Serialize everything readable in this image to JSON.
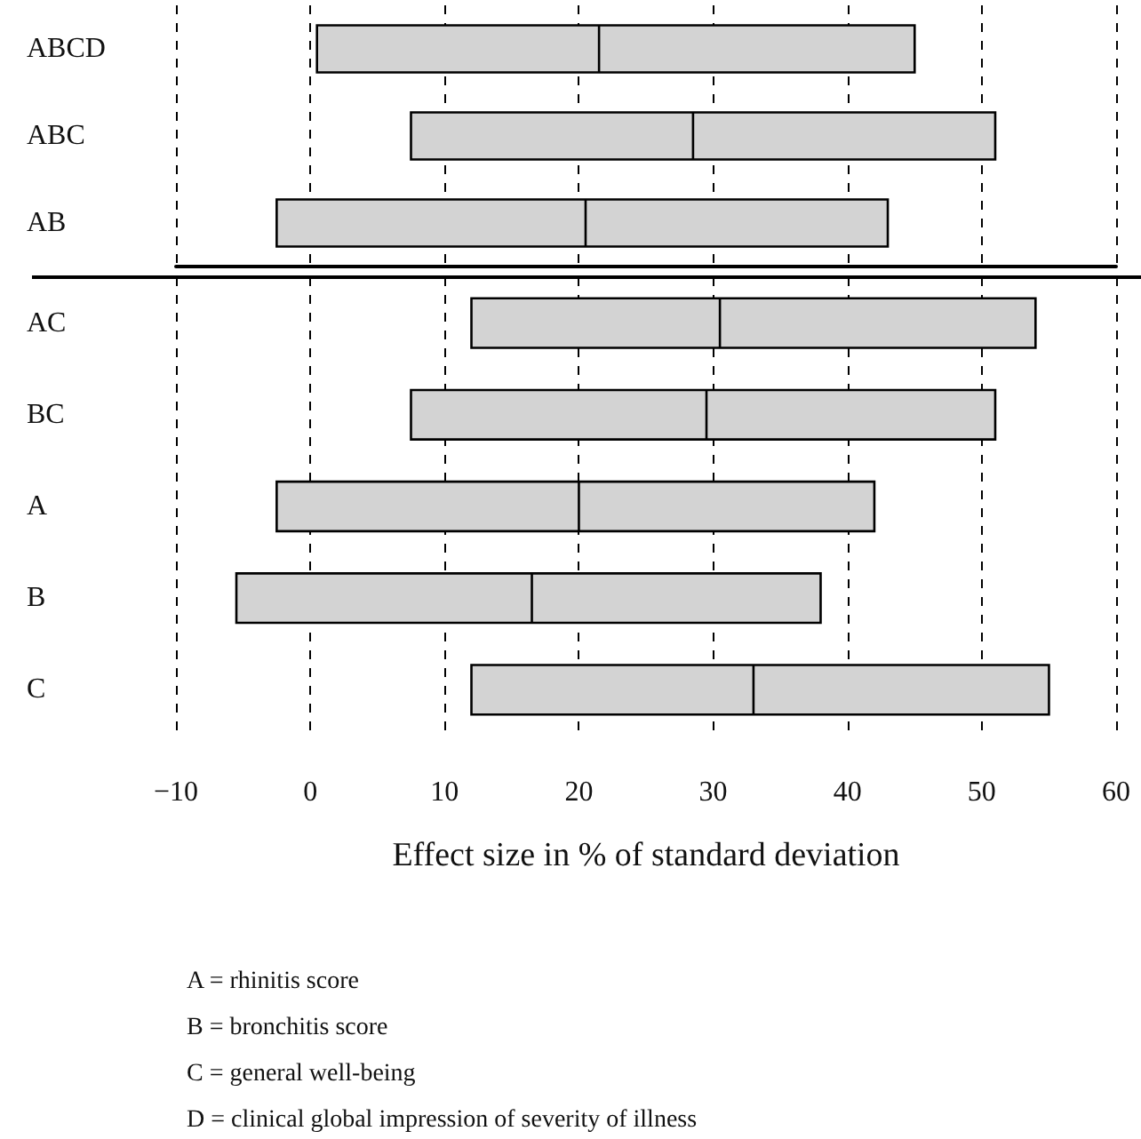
{
  "chart_data": [
    {
      "type": "box",
      "orientation": "horizontal",
      "categories": [
        "ABCD",
        "ABC",
        "AB"
      ],
      "series": [
        {
          "color": "#d3d3d3",
          "boxes": [
            {
              "low": 0.5,
              "q1": 0.5,
              "median": 21.5,
              "q3": 45,
              "high": 45
            },
            {
              "low": 7.5,
              "q1": 7.5,
              "median": 28.5,
              "q3": 51,
              "high": 51
            },
            {
              "low": -2.5,
              "q1": -2.5,
              "median": 20.5,
              "q3": 43,
              "high": 43
            }
          ]
        }
      ],
      "xlim": [
        -10,
        60
      ],
      "xticks": [
        -10,
        0,
        10,
        20,
        30,
        40,
        50,
        60
      ],
      "grid": "x",
      "tick_labels": "y"
    },
    {
      "type": "box",
      "orientation": "horizontal",
      "categories": [
        "AC",
        "BC",
        "A",
        "B",
        "C"
      ],
      "series": [
        {
          "color": "#d3d3d3",
          "boxes": [
            {
              "low": 12,
              "q1": 12,
              "median": 30.5,
              "q3": 54,
              "high": 54
            },
            {
              "low": 7.5,
              "q1": 7.5,
              "median": 29.5,
              "q3": 51,
              "high": 51
            },
            {
              "low": -2.5,
              "q1": -2.5,
              "median": 20,
              "q3": 42,
              "high": 42
            },
            {
              "low": -5.5,
              "q1": -5.5,
              "median": 16.5,
              "q3": 38,
              "high": 38
            },
            {
              "low": 12,
              "q1": 12,
              "median": 33,
              "q3": 55,
              "high": 55
            }
          ]
        }
      ],
      "xlim": [
        -10,
        60
      ],
      "xticks": [
        -10,
        0,
        10,
        20,
        30,
        40,
        50,
        60
      ],
      "grid": "x",
      "xlabel": "Effect size in % of standard deviation",
      "annotations": [
        "A = rhinitis score",
        "B = bronchitis score",
        "C = general well-being",
        "D = clinical global impression of severity of illness"
      ]
    }
  ]
}
